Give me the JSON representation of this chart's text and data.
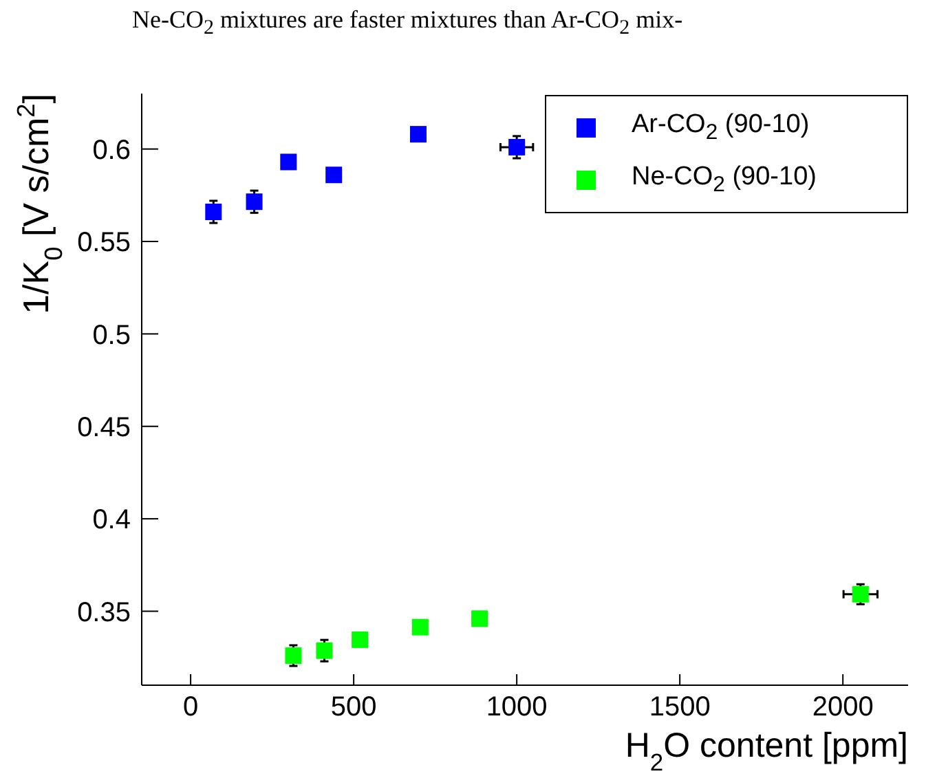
{
  "chart_data": {
    "type": "scatter",
    "xlabel": "H$_{2}$O content [ppm]",
    "ylabel": "1/K$_{0}$ [V s/cm$^{2}$]",
    "annotations": [
      "Ne-CO$_{2}$ mixtures are faster mixtures than Ar-CO$_{2}$ mix-"
    ],
    "xlim": [
      -150,
      2200
    ],
    "ylim": [
      0.31,
      0.63
    ],
    "xticks": [
      0,
      500,
      1000,
      1500,
      2000
    ],
    "yticks": [
      0.35,
      0.4,
      0.45,
      0.5,
      0.55,
      0.6
    ],
    "marker": "square",
    "grid": false,
    "legend": "top right",
    "series": [
      {
        "name": "Ar-CO$_{2}$  (90-10)",
        "color": "#0000ff",
        "x": [
          70,
          195,
          300,
          439,
          698,
          1000
        ],
        "values": [
          0.566,
          0.5715,
          0.593,
          0.586,
          0.608,
          0.601
        ],
        "errors": [
          0.006,
          0.006,
          null,
          null,
          null,
          0.006
        ],
        "xerrors": [
          null,
          null,
          null,
          null,
          null,
          50
        ]
      },
      {
        "name": "Ne-CO$_{2}$ (90-10)",
        "color": "#00ff00",
        "x": [
          315,
          410,
          519,
          704,
          886,
          2054
        ],
        "values": [
          0.326,
          0.3287,
          0.3346,
          0.3414,
          0.346,
          0.3592
        ],
        "errors": [
          0.0056,
          0.0058,
          null,
          null,
          null,
          0.0054
        ],
        "xerrors": [
          null,
          null,
          null,
          null,
          null,
          52
        ]
      }
    ]
  }
}
